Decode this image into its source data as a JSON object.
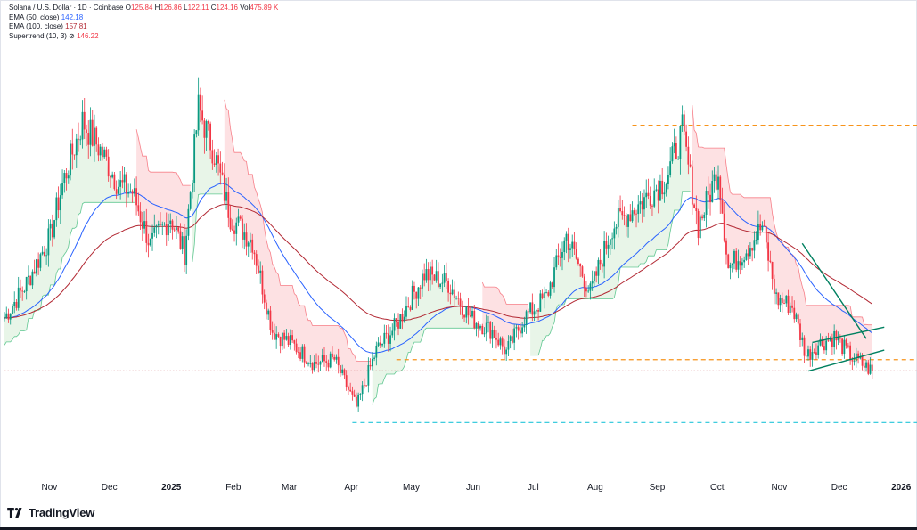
{
  "legend": {
    "title": "Solana / U.S. Dollar · 1D · Coinbase",
    "o_label": "O",
    "o_value": "125.84",
    "h_label": "H",
    "h_value": "126.86",
    "l_label": "L",
    "l_value": "122.11",
    "c_label": "C",
    "c_value": "124.16",
    "vol_label": "Vol",
    "vol_value": "475.89 K",
    "ema50_label": "EMA (50, close)",
    "ema50_value": "142.18",
    "ema100_label": "EMA (100, close)",
    "ema100_value": "157.81",
    "supertrend_label": "Supertrend (10, 3)",
    "supertrend_glyph": "⊘",
    "supertrend_value": "146.22"
  },
  "brand": {
    "name": "TradingView"
  },
  "colors": {
    "up": "#089981",
    "down": "#f23645",
    "ema50": "#2962ff",
    "ema100": "#b22833",
    "st_up": "#00a651",
    "st_down": "#f23645",
    "level": "#f7931a",
    "support": "#26c6da"
  },
  "chart_data": {
    "type": "candlestick",
    "symbol": "Solana / U.S. Dollar",
    "interval": "1D",
    "exchange": "Coinbase",
    "x_ticks": [
      "Nov",
      "Dec",
      "2025",
      "Feb",
      "Mar",
      "Apr",
      "May",
      "Jun",
      "Jul",
      "Aug",
      "Sep",
      "Oct",
      "Nov",
      "Dec",
      "2026"
    ],
    "ylim": [
      85,
      300
    ],
    "close_path": [
      [
        "2024-10-14",
        152
      ],
      [
        "2024-10-25",
        170
      ],
      [
        "2024-11-06",
        195
      ],
      [
        "2024-11-12",
        222
      ],
      [
        "2024-11-22",
        255
      ],
      [
        "2024-12-01",
        240
      ],
      [
        "2024-12-10",
        222
      ],
      [
        "2024-12-17",
        218
      ],
      [
        "2024-12-26",
        190
      ],
      [
        "2025-01-05",
        205
      ],
      [
        "2025-01-12",
        186
      ],
      [
        "2025-01-19",
        262
      ],
      [
        "2025-01-27",
        238
      ],
      [
        "2025-02-04",
        205
      ],
      [
        "2025-02-15",
        192
      ],
      [
        "2025-02-25",
        145
      ],
      [
        "2025-03-07",
        138
      ],
      [
        "2025-03-18",
        128
      ],
      [
        "2025-03-28",
        130
      ],
      [
        "2025-04-08",
        105
      ],
      [
        "2025-04-18",
        135
      ],
      [
        "2025-04-28",
        148
      ],
      [
        "2025-05-12",
        175
      ],
      [
        "2025-05-24",
        170
      ],
      [
        "2025-06-04",
        152
      ],
      [
        "2025-06-15",
        145
      ],
      [
        "2025-06-22",
        134
      ],
      [
        "2025-07-01",
        152
      ],
      [
        "2025-07-12",
        163
      ],
      [
        "2025-07-22",
        195
      ],
      [
        "2025-08-03",
        165
      ],
      [
        "2025-08-14",
        200
      ],
      [
        "2025-08-28",
        212
      ],
      [
        "2025-09-10",
        225
      ],
      [
        "2025-09-18",
        250
      ],
      [
        "2025-09-26",
        200
      ],
      [
        "2025-10-06",
        230
      ],
      [
        "2025-10-11",
        178
      ],
      [
        "2025-10-20",
        188
      ],
      [
        "2025-10-28",
        200
      ],
      [
        "2025-11-04",
        162
      ],
      [
        "2025-11-12",
        158
      ],
      [
        "2025-11-19",
        132
      ],
      [
        "2025-11-25",
        138
      ],
      [
        "2025-12-03",
        142
      ],
      [
        "2025-12-12",
        131
      ],
      [
        "2025-12-22",
        124
      ]
    ],
    "ema50_last": 142.18,
    "ema100_last": 157.81,
    "supertrend_last": 146.22,
    "horizontal_levels": [
      {
        "price": 253,
        "from": "2025-08-24",
        "style": "dashed",
        "color": "#f7931a"
      },
      {
        "price": 130,
        "from": "2025-04-28",
        "style": "dashed",
        "color": "#f7931a"
      },
      {
        "price": 97,
        "from": "2025-04-06",
        "style": "dashed",
        "color": "#26c6da"
      },
      {
        "price": 124.16,
        "from": "2024-10-14",
        "style": "dotted",
        "color": "#b22833"
      }
    ],
    "pattern_lines": [
      {
        "from": [
          "2025-11-17",
          191
        ],
        "to": [
          "2025-12-19",
          141
        ],
        "color": "#008060"
      },
      {
        "from": [
          "2025-11-22",
          139
        ],
        "to": [
          "2025-12-28",
          147
        ],
        "color": "#008060"
      },
      {
        "from": [
          "2025-11-20",
          124
        ],
        "to": [
          "2025-12-28",
          135
        ],
        "color": "#008060"
      }
    ]
  }
}
